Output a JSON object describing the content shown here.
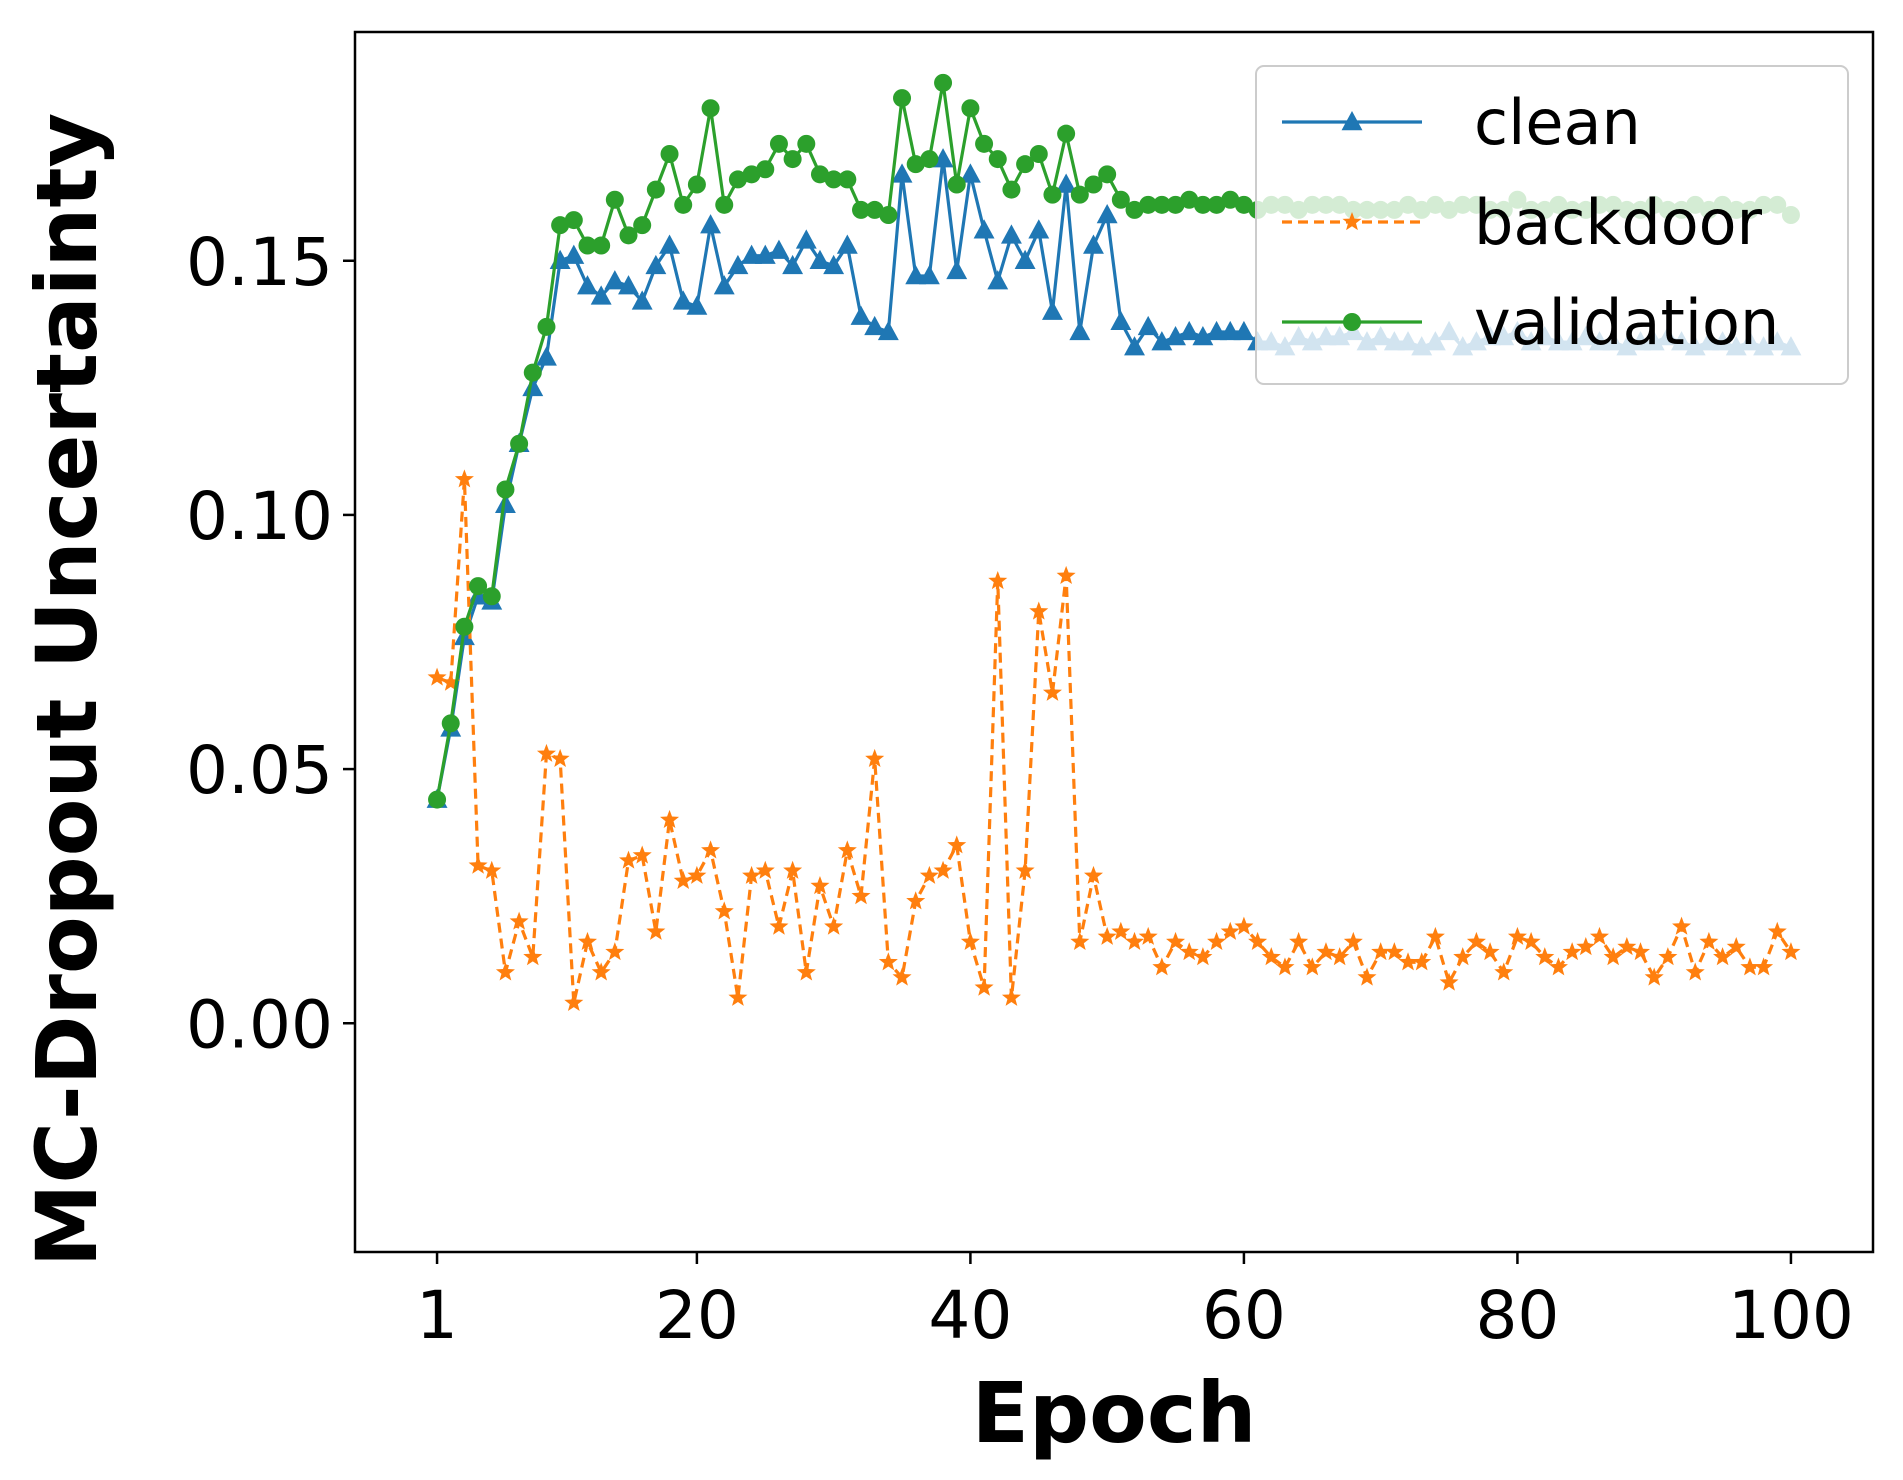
{
  "chart_data": {
    "type": "line",
    "title": "",
    "xlabel": "Epoch",
    "ylabel": "MC-Dropout Uncertainty",
    "xlim": [
      -5,
      106
    ],
    "ylim": [
      -0.045,
      0.195
    ],
    "x_ticks": [
      1,
      20,
      40,
      60,
      80,
      100
    ],
    "y_ticks": [
      0.0,
      0.05,
      0.1,
      0.15
    ],
    "y_tick_labels": [
      "0.00",
      "0.05",
      "0.10",
      "0.15"
    ],
    "grid": false,
    "legend_position": "top-right",
    "x": [
      1,
      2,
      3,
      4,
      5,
      6,
      7,
      8,
      9,
      10,
      11,
      12,
      13,
      14,
      15,
      16,
      17,
      18,
      19,
      20,
      21,
      22,
      23,
      24,
      25,
      26,
      27,
      28,
      29,
      30,
      31,
      32,
      33,
      34,
      35,
      36,
      37,
      38,
      39,
      40,
      41,
      42,
      43,
      44,
      45,
      46,
      47,
      48,
      49,
      50,
      51,
      52,
      53,
      54,
      55,
      56,
      57,
      58,
      59,
      60,
      61,
      62,
      63,
      64,
      65,
      66,
      67,
      68,
      69,
      70,
      71,
      72,
      73,
      74,
      75,
      76,
      77,
      78,
      79,
      80,
      81,
      82,
      83,
      84,
      85,
      86,
      87,
      88,
      89,
      90,
      91,
      92,
      93,
      94,
      95,
      96,
      97,
      98,
      99,
      100
    ],
    "series": [
      {
        "name": "clean",
        "color": "#1f77b4",
        "marker": "triangle",
        "dash": "solid",
        "values": [
          0.044,
          0.058,
          0.076,
          0.084,
          0.083,
          0.102,
          0.114,
          0.125,
          0.131,
          0.15,
          0.151,
          0.145,
          0.143,
          0.146,
          0.145,
          0.142,
          0.149,
          0.153,
          0.142,
          0.141,
          0.157,
          0.145,
          0.149,
          0.151,
          0.151,
          0.152,
          0.149,
          0.154,
          0.15,
          0.149,
          0.153,
          0.139,
          0.137,
          0.136,
          0.167,
          0.147,
          0.147,
          0.17,
          0.148,
          0.167,
          0.156,
          0.146,
          0.155,
          0.15,
          0.156,
          0.14,
          0.165,
          0.136,
          0.153,
          0.159,
          0.138,
          0.133,
          0.137,
          0.134,
          0.135,
          0.136,
          0.135,
          0.136,
          0.136,
          0.136,
          0.134,
          0.134,
          0.133,
          0.135,
          0.134,
          0.135,
          0.135,
          0.136,
          0.134,
          0.135,
          0.134,
          0.134,
          0.133,
          0.134,
          0.136,
          0.133,
          0.134,
          0.135,
          0.135,
          0.136,
          0.134,
          0.135,
          0.134,
          0.134,
          0.135,
          0.134,
          0.134,
          0.133,
          0.134,
          0.134,
          0.135,
          0.134,
          0.133,
          0.134,
          0.134,
          0.133,
          0.134,
          0.133,
          0.134,
          0.133
        ]
      },
      {
        "name": "backdoor",
        "color": "#ff7f0e",
        "marker": "star",
        "dash": "dashed",
        "values": [
          0.068,
          0.067,
          0.107,
          0.031,
          0.03,
          0.01,
          0.02,
          0.013,
          0.053,
          0.052,
          0.004,
          0.016,
          0.01,
          0.014,
          0.032,
          0.033,
          0.018,
          0.04,
          0.028,
          0.029,
          0.034,
          0.022,
          0.005,
          0.029,
          0.03,
          0.019,
          0.03,
          0.01,
          0.027,
          0.019,
          0.034,
          0.025,
          0.052,
          0.012,
          0.009,
          0.024,
          0.029,
          0.03,
          0.035,
          0.016,
          0.007,
          0.087,
          0.005,
          0.03,
          0.081,
          0.065,
          0.088,
          0.016,
          0.029,
          0.017,
          0.018,
          0.016,
          0.017,
          0.011,
          0.016,
          0.014,
          0.013,
          0.016,
          0.018,
          0.019,
          0.016,
          0.013,
          0.011,
          0.016,
          0.011,
          0.014,
          0.013,
          0.016,
          0.009,
          0.014,
          0.014,
          0.012,
          0.012,
          0.017,
          0.008,
          0.013,
          0.016,
          0.014,
          0.01,
          0.017,
          0.016,
          0.013,
          0.011,
          0.014,
          0.015,
          0.017,
          0.013,
          0.015,
          0.014,
          0.009,
          0.013,
          0.019,
          0.01,
          0.016,
          0.013,
          0.015,
          0.011,
          0.011,
          0.018,
          0.014
        ]
      },
      {
        "name": "validation",
        "color": "#2ca02c",
        "marker": "circle",
        "dash": "solid",
        "values": [
          0.044,
          0.059,
          0.078,
          0.086,
          0.084,
          0.105,
          0.114,
          0.128,
          0.137,
          0.157,
          0.158,
          0.153,
          0.153,
          0.162,
          0.155,
          0.157,
          0.164,
          0.171,
          0.161,
          0.165,
          0.18,
          0.161,
          0.166,
          0.167,
          0.168,
          0.173,
          0.17,
          0.173,
          0.167,
          0.166,
          0.166,
          0.16,
          0.16,
          0.159,
          0.182,
          0.169,
          0.17,
          0.185,
          0.165,
          0.18,
          0.173,
          0.17,
          0.164,
          0.169,
          0.171,
          0.163,
          0.175,
          0.163,
          0.165,
          0.167,
          0.162,
          0.16,
          0.161,
          0.161,
          0.161,
          0.162,
          0.161,
          0.161,
          0.162,
          0.161,
          0.16,
          0.161,
          0.161,
          0.16,
          0.161,
          0.161,
          0.161,
          0.16,
          0.16,
          0.16,
          0.16,
          0.161,
          0.16,
          0.161,
          0.16,
          0.161,
          0.161,
          0.16,
          0.16,
          0.162,
          0.16,
          0.16,
          0.161,
          0.16,
          0.16,
          0.161,
          0.161,
          0.16,
          0.16,
          0.161,
          0.16,
          0.16,
          0.161,
          0.16,
          0.161,
          0.16,
          0.16,
          0.161,
          0.161,
          0.159
        ]
      }
    ]
  }
}
